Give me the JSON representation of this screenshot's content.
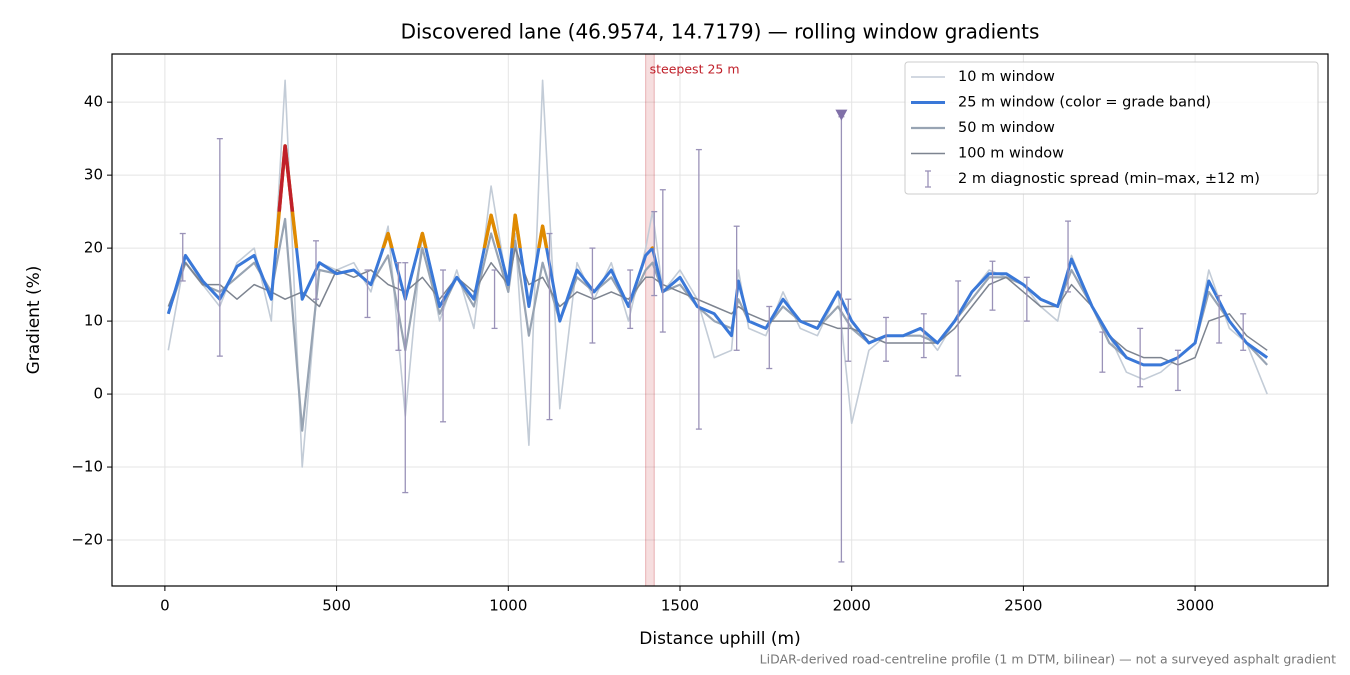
{
  "chart_data": {
    "type": "line",
    "title": "Discovered lane (46.9574, 14.7179) — rolling window gradients",
    "x_label": "Distance uphill (m)",
    "y_label": "Gradient (%)",
    "footnote": "LiDAR-derived road-centreline profile (1 m DTM, bilinear) — not a surveyed asphalt gradient",
    "xlim": [
      -154,
      3387
    ],
    "ylim": [
      -26.3,
      46.6
    ],
    "xticks": [
      0,
      500,
      1000,
      1500,
      2000,
      2500,
      3000
    ],
    "yticks": [
      {
        "value": -20,
        "label": "−20"
      },
      {
        "value": -10,
        "label": "−10"
      },
      0,
      10,
      20,
      30,
      40
    ],
    "grid": true,
    "legend": "upper right",
    "x": [
      10,
      60,
      110,
      160,
      210,
      260,
      310,
      350,
      400,
      450,
      500,
      550,
      600,
      650,
      700,
      750,
      800,
      850,
      900,
      950,
      1000,
      1020,
      1060,
      1100,
      1150,
      1200,
      1250,
      1300,
      1350,
      1400,
      1420,
      1450,
      1500,
      1550,
      1600,
      1650,
      1670,
      1700,
      1750,
      1800,
      1850,
      1900,
      1960,
      2000,
      2050,
      2100,
      2150,
      2200,
      2250,
      2300,
      2350,
      2400,
      2450,
      2500,
      2550,
      2600,
      2640,
      2700,
      2750,
      2800,
      2850,
      2900,
      2950,
      3000,
      3040,
      3100,
      3150,
      3210
    ],
    "series": [
      {
        "name": "10 m window",
        "color": "#c3ccd7",
        "width": 1.6,
        "values": [
          6,
          19,
          15,
          12,
          18,
          20,
          10,
          43,
          -10,
          18,
          17,
          18,
          14,
          23,
          -3,
          22,
          10,
          17,
          9,
          28.5,
          14,
          22,
          -7,
          43,
          -2,
          18,
          13,
          18,
          10,
          20,
          25,
          14,
          17,
          13,
          5,
          6,
          17,
          9,
          8,
          14,
          9,
          8,
          14,
          -4,
          6,
          8,
          8,
          9,
          6,
          10,
          14,
          17,
          16,
          15,
          12,
          10,
          19,
          12,
          8,
          3,
          2,
          3,
          5,
          7,
          17,
          9,
          7,
          0
        ]
      },
      {
        "name": "50 m window",
        "color": "#98a4b3",
        "width": 2.2,
        "values": [
          11,
          18,
          15,
          14,
          16,
          18,
          14,
          24,
          -5,
          17,
          16.5,
          17,
          15,
          19,
          6,
          20,
          11,
          16,
          12,
          22,
          14,
          21,
          8,
          18,
          10,
          16,
          14,
          16,
          12,
          17,
          18,
          14,
          15,
          12,
          10,
          9,
          13,
          10,
          9,
          12,
          10,
          9,
          12,
          9,
          7,
          8,
          8,
          8,
          7,
          10,
          13,
          16,
          16,
          15,
          13,
          12,
          17,
          12,
          7,
          5,
          4,
          4,
          5,
          7,
          14,
          10,
          7,
          4
        ]
      },
      {
        "name": "100 m window",
        "color": "#7d8490",
        "width": 1.5,
        "values": [
          12,
          18,
          15,
          15,
          13,
          15,
          14,
          13,
          14,
          12,
          17,
          16,
          17,
          15,
          14,
          16,
          13,
          16,
          14,
          18,
          15,
          20,
          15,
          16,
          12,
          14,
          13,
          14,
          13,
          16,
          16,
          15,
          14,
          13,
          12,
          11,
          12,
          11,
          10,
          10,
          10,
          10,
          9,
          9,
          8,
          7,
          7,
          7,
          7,
          9,
          12,
          15,
          16,
          14,
          12,
          12,
          15,
          12,
          8,
          6,
          5,
          5,
          4,
          5,
          10,
          11,
          8,
          6
        ]
      },
      {
        "name": "25 m window (color = grade band)",
        "color": "#3a78d8",
        "width": 3,
        "band_colors": [
          {
            "min": 20,
            "color": "#e08a00"
          },
          {
            "min": 25,
            "color": "#c0202a"
          }
        ],
        "values": [
          11,
          19,
          15.5,
          13,
          17.5,
          19,
          13,
          34,
          13,
          18,
          16.5,
          17,
          15,
          22,
          13,
          22,
          12,
          16,
          13,
          24.5,
          15,
          24.5,
          12,
          23,
          10,
          17,
          14,
          17,
          12,
          19,
          20,
          14,
          16,
          12,
          11,
          8,
          15.5,
          10,
          9,
          13,
          10,
          9,
          14,
          10,
          7,
          8,
          8,
          9,
          7,
          10,
          14,
          16.5,
          16.5,
          15,
          13,
          12,
          18.5,
          12,
          8,
          5,
          4,
          4,
          5,
          7,
          15.5,
          10,
          7,
          5
        ]
      }
    ],
    "legend_order": [
      0,
      3,
      1,
      2
    ],
    "spread": {
      "name": "2 m diagnostic spread (min–max, ±12 m)",
      "color": "#9a92b8",
      "x": [
        52,
        160,
        440,
        590,
        680,
        700,
        810,
        960,
        1120,
        1245,
        1355,
        1425,
        1450,
        1555,
        1665,
        1760,
        1970,
        1990,
        2100,
        2210,
        2310,
        2410,
        2510,
        2630,
        2730,
        2840,
        2950,
        3070,
        3140
      ],
      "low": [
        15.5,
        5.2,
        13,
        10.5,
        6,
        -13.5,
        -3.8,
        9,
        -3.5,
        7,
        9,
        13.5,
        8.5,
        -4.8,
        6,
        3.5,
        -23,
        4.5,
        4.5,
        5,
        2.5,
        11.5,
        10,
        14,
        3,
        1,
        0.5,
        7,
        6
      ],
      "high": [
        22,
        35,
        21,
        17,
        18,
        18,
        17,
        17,
        22,
        20,
        17,
        25,
        28,
        33.5,
        23,
        12,
        38,
        13,
        10.5,
        11,
        15.5,
        18.2,
        16,
        23.7,
        8.5,
        9,
        6,
        13.5,
        11
      ]
    },
    "highlight": {
      "x": 1970,
      "y": 38.3,
      "color": "#8070a8"
    },
    "steepest": {
      "label": "steepest 25 m",
      "x": [
        1400,
        1425
      ],
      "color": "#c0202a"
    }
  }
}
